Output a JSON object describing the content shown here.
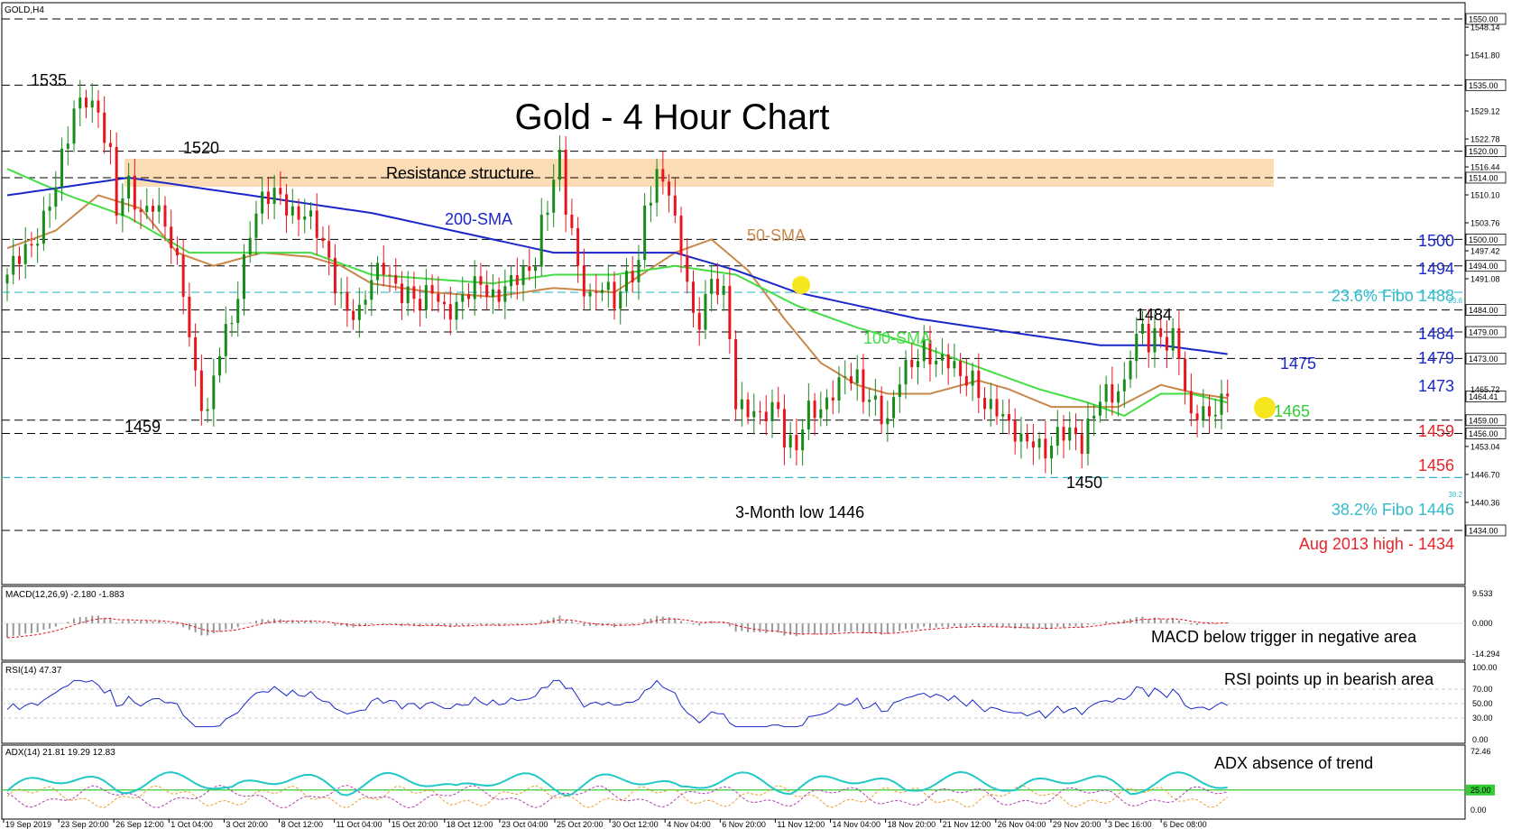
{
  "symbol": "GOLD,H4",
  "title": "Gold - 4 Hour Chart",
  "resistance_label": "Resistance structure",
  "indicator_headers": {
    "macd": "MACD(12,26,9) -2.180 -1.883",
    "rsi": "RSI(14) 47.37",
    "adx": "ADX(14) 21.81 19.29 12.83"
  },
  "indicator_notes": {
    "macd": "MACD below trigger in negative area",
    "rsi": "RSI points up in bearish area",
    "adx": "ADX absence of trend"
  },
  "sma_labels": {
    "sma200": "200-SMA",
    "sma50": "50-SMA",
    "sma100": "100-SMA"
  },
  "annotations": [
    {
      "text": "1535",
      "color": "#000000"
    },
    {
      "text": "1520",
      "color": "#000000"
    },
    {
      "text": "1459",
      "color": "#000000"
    },
    {
      "text": "3-Month low 1446",
      "color": "#000000"
    },
    {
      "text": "1450",
      "color": "#000000"
    },
    {
      "text": "1484",
      "color": "#000000"
    },
    {
      "text": "1475",
      "color": "#1a28c8"
    },
    {
      "text": "1465",
      "color": "#33cc33"
    }
  ],
  "level_labels": [
    {
      "text": "1500",
      "color": "#1a28c8"
    },
    {
      "text": "1494",
      "color": "#1a28c8"
    },
    {
      "text": "23.6% Fibo 1488",
      "color": "#33bbcc"
    },
    {
      "text": "1484",
      "color": "#1a28c8"
    },
    {
      "text": "1479",
      "color": "#1a28c8"
    },
    {
      "text": "1473",
      "color": "#1a28c8"
    },
    {
      "text": "1459",
      "color": "#e8242a"
    },
    {
      "text": "1456",
      "color": "#e8242a"
    },
    {
      "text": "38.2% Fibo 1446",
      "color": "#33bbcc"
    },
    {
      "text": "Aug 2013 high - 1434",
      "color": "#e8242a"
    }
  ],
  "fibo_small_tags": [
    "23.6",
    "38.2"
  ],
  "price_axis": {
    "plain_ticks": [
      "1548.14",
      "1541.80",
      "1529.12",
      "1522.78",
      "1516.44",
      "1510.10",
      "1503.76",
      "1497.42",
      "1491.08",
      "1453.04",
      "1446.70",
      "1440.36"
    ],
    "boxed_ticks": [
      "1550.00",
      "1535.00",
      "1520.00",
      "1514.00",
      "1500.00",
      "1494.00",
      "1484.00",
      "1479.00",
      "1473.00",
      "1464.41",
      "1459.00",
      "1456.00",
      "1434.00"
    ],
    "partial_tick": "1465.72"
  },
  "macd_axis": [
    "9.533",
    "0.000",
    "-14.294"
  ],
  "rsi_axis": [
    "100.00",
    "70.00",
    "50.00",
    "30.00",
    "0.00"
  ],
  "adx_axis": [
    "72.46",
    "25.00",
    "0.00"
  ],
  "time_axis": [
    "19 Sep 2019",
    "23 Sep 20:00",
    "26 Sep 12:00",
    "1 Oct 04:00",
    "3 Oct 20:00",
    "8 Oct 12:00",
    "11 Oct 04:00",
    "15 Oct 20:00",
    "18 Oct 12:00",
    "23 Oct 04:00",
    "25 Oct 20:00",
    "30 Oct 12:00",
    "4 Nov 04:00",
    "6 Nov 20:00",
    "11 Nov 12:00",
    "14 Nov 04:00",
    "18 Nov 20:00",
    "21 Nov 12:00",
    "26 Nov 04:00",
    "29 Nov 20:00",
    "3 Dec 16:00",
    "6 Dec 08:00"
  ],
  "colors": {
    "bull_candle": "#1a8a1a",
    "bear_candle": "#e8141e",
    "sma200": "#1a28c8",
    "sma50": "#c8884a",
    "sma100": "#44dd44",
    "fibo": "#33bbcc",
    "resistance_band": "#fcdcb4",
    "highlight_dot": "#f5e61e",
    "macd_hist": "#999999",
    "macd_signal": "#e8141e",
    "rsi_line": "#1a28c8",
    "adx_main": "#22c8c8",
    "adx_plus_di": "#e8a030",
    "adx_minus_di": "#b040b0",
    "adx_level": "#33cc33"
  },
  "chart_data": {
    "type": "candlestick",
    "title": "Gold - 4 Hour Chart",
    "ylim": [
      1425,
      1552
    ],
    "horizontal_levels": [
      1550,
      1535,
      1520,
      1514,
      1500,
      1494,
      1484,
      1479,
      1473,
      1459,
      1456,
      1434
    ],
    "fibonacci_levels": [
      {
        "label": "23.6",
        "value": 1488
      },
      {
        "label": "38.2",
        "value": 1446
      }
    ],
    "resistance_zone": [
      1514,
      1520
    ],
    "current_price": 1464.41,
    "anchors": [
      [
        0,
        1492
      ],
      [
        4,
        1498
      ],
      [
        6,
        1506
      ],
      [
        8,
        1513
      ],
      [
        10,
        1522
      ],
      [
        11,
        1528
      ],
      [
        13,
        1533
      ],
      [
        15,
        1530
      ],
      [
        17,
        1518
      ],
      [
        18,
        1505
      ],
      [
        20,
        1512
      ],
      [
        22,
        1507
      ],
      [
        24,
        1509
      ],
      [
        27,
        1498
      ],
      [
        29,
        1489
      ],
      [
        31,
        1470
      ],
      [
        32,
        1464
      ],
      [
        33,
        1460
      ],
      [
        35,
        1474
      ],
      [
        37,
        1482
      ],
      [
        38,
        1489
      ],
      [
        40,
        1503
      ],
      [
        42,
        1508
      ],
      [
        45,
        1510
      ],
      [
        47,
        1507
      ],
      [
        49,
        1506
      ],
      [
        52,
        1498
      ],
      [
        54,
        1491
      ],
      [
        56,
        1485
      ],
      [
        58,
        1482
      ],
      [
        60,
        1490
      ],
      [
        62,
        1495
      ],
      [
        65,
        1488
      ],
      [
        68,
        1484
      ],
      [
        70,
        1490
      ],
      [
        72,
        1485
      ],
      [
        74,
        1484
      ],
      [
        76,
        1487
      ],
      [
        78,
        1491
      ],
      [
        80,
        1488
      ],
      [
        83,
        1489
      ],
      [
        86,
        1493
      ],
      [
        87,
        1497
      ],
      [
        88,
        1505
      ],
      [
        89,
        1508
      ],
      [
        90,
        1514
      ],
      [
        91,
        1517
      ],
      [
        92,
        1506
      ],
      [
        93,
        1501
      ],
      [
        94,
        1493
      ],
      [
        96,
        1488
      ],
      [
        98,
        1490
      ],
      [
        100,
        1484
      ],
      [
        102,
        1491
      ],
      [
        104,
        1496
      ],
      [
        105,
        1508
      ],
      [
        107,
        1513
      ],
      [
        108,
        1512
      ],
      [
        109,
        1510
      ],
      [
        110,
        1503
      ],
      [
        111,
        1499
      ],
      [
        112,
        1492
      ],
      [
        113,
        1483
      ],
      [
        114,
        1482
      ],
      [
        116,
        1489
      ],
      [
        118,
        1487
      ],
      [
        119,
        1479
      ],
      [
        120,
        1464
      ],
      [
        122,
        1462
      ],
      [
        124,
        1458
      ],
      [
        126,
        1461
      ],
      [
        127,
        1462
      ],
      [
        128,
        1456
      ],
      [
        130,
        1454
      ],
      [
        132,
        1460
      ],
      [
        134,
        1460
      ],
      [
        136,
        1467
      ],
      [
        138,
        1470
      ],
      [
        140,
        1467
      ],
      [
        141,
        1463
      ],
      [
        143,
        1463
      ],
      [
        145,
        1460
      ],
      [
        147,
        1469
      ],
      [
        149,
        1470
      ],
      [
        151,
        1475
      ],
      [
        153,
        1474
      ],
      [
        155,
        1473
      ],
      [
        157,
        1467
      ],
      [
        159,
        1468
      ],
      [
        161,
        1464
      ],
      [
        163,
        1462
      ],
      [
        165,
        1456
      ],
      [
        167,
        1454
      ],
      [
        169,
        1456
      ],
      [
        171,
        1452
      ],
      [
        173,
        1454
      ],
      [
        175,
        1456
      ],
      [
        177,
        1455
      ],
      [
        178,
        1459
      ],
      [
        179,
        1461
      ],
      [
        180,
        1464
      ],
      [
        182,
        1463
      ],
      [
        184,
        1467
      ],
      [
        185,
        1476
      ],
      [
        186,
        1479
      ],
      [
        187,
        1481
      ],
      [
        188,
        1476
      ],
      [
        190,
        1477
      ],
      [
        191,
        1475
      ],
      [
        192,
        1478
      ],
      [
        193,
        1476
      ],
      [
        194,
        1467
      ],
      [
        195,
        1460
      ],
      [
        196,
        1461
      ],
      [
        198,
        1458
      ],
      [
        199,
        1461
      ],
      [
        200,
        1463
      ],
      [
        201,
        1464
      ]
    ],
    "sma200_values": [
      [
        0,
        1510
      ],
      [
        20,
        1514
      ],
      [
        30,
        1512
      ],
      [
        40,
        1510
      ],
      [
        50,
        1508
      ],
      [
        60,
        1506
      ],
      [
        70,
        1503
      ],
      [
        80,
        1500
      ],
      [
        90,
        1497
      ],
      [
        100,
        1497
      ],
      [
        110,
        1497
      ],
      [
        120,
        1493
      ],
      [
        130,
        1488
      ],
      [
        140,
        1485
      ],
      [
        150,
        1482
      ],
      [
        160,
        1480
      ],
      [
        170,
        1478
      ],
      [
        180,
        1476
      ],
      [
        190,
        1476
      ],
      [
        201,
        1474
      ]
    ],
    "sma50_values": [
      [
        0,
        1498
      ],
      [
        8,
        1502
      ],
      [
        15,
        1510
      ],
      [
        22,
        1507
      ],
      [
        28,
        1497
      ],
      [
        34,
        1494
      ],
      [
        42,
        1497
      ],
      [
        50,
        1496
      ],
      [
        55,
        1494
      ],
      [
        60,
        1490
      ],
      [
        70,
        1488
      ],
      [
        80,
        1487
      ],
      [
        90,
        1489
      ],
      [
        100,
        1488
      ],
      [
        110,
        1497
      ],
      [
        116,
        1500
      ],
      [
        122,
        1493
      ],
      [
        128,
        1482
      ],
      [
        134,
        1472
      ],
      [
        140,
        1467
      ],
      [
        145,
        1465
      ],
      [
        152,
        1465
      ],
      [
        160,
        1468
      ],
      [
        165,
        1466
      ],
      [
        172,
        1462
      ],
      [
        178,
        1462
      ],
      [
        183,
        1462
      ],
      [
        190,
        1467
      ],
      [
        196,
        1465
      ],
      [
        201,
        1464
      ]
    ],
    "sma100_values": [
      [
        0,
        1516
      ],
      [
        10,
        1510
      ],
      [
        20,
        1505
      ],
      [
        30,
        1497
      ],
      [
        40,
        1497
      ],
      [
        50,
        1497
      ],
      [
        60,
        1492
      ],
      [
        70,
        1491
      ],
      [
        80,
        1490
      ],
      [
        90,
        1492
      ],
      [
        100,
        1492
      ],
      [
        110,
        1494
      ],
      [
        120,
        1492
      ],
      [
        130,
        1485
      ],
      [
        140,
        1480
      ],
      [
        150,
        1476
      ],
      [
        160,
        1471
      ],
      [
        170,
        1466
      ],
      [
        178,
        1463
      ],
      [
        184,
        1460
      ],
      [
        190,
        1465
      ],
      [
        195,
        1465
      ],
      [
        201,
        1463
      ]
    ],
    "x_labels": [
      "19 Sep 2019",
      "23 Sep 20:00",
      "26 Sep 12:00",
      "1 Oct 04:00",
      "3 Oct 20:00",
      "8 Oct 12:00",
      "11 Oct 04:00",
      "15 Oct 20:00",
      "18 Oct 12:00",
      "23 Oct 04:00",
      "25 Oct 20:00",
      "30 Oct 12:00",
      "4 Nov 04:00",
      "6 Nov 20:00",
      "11 Nov 12:00",
      "14 Nov 04:00",
      "18 Nov 20:00",
      "21 Nov 12:00",
      "26 Nov 04:00",
      "29 Nov 20:00",
      "3 Dec 16:00",
      "6 Dec 08:00"
    ]
  }
}
